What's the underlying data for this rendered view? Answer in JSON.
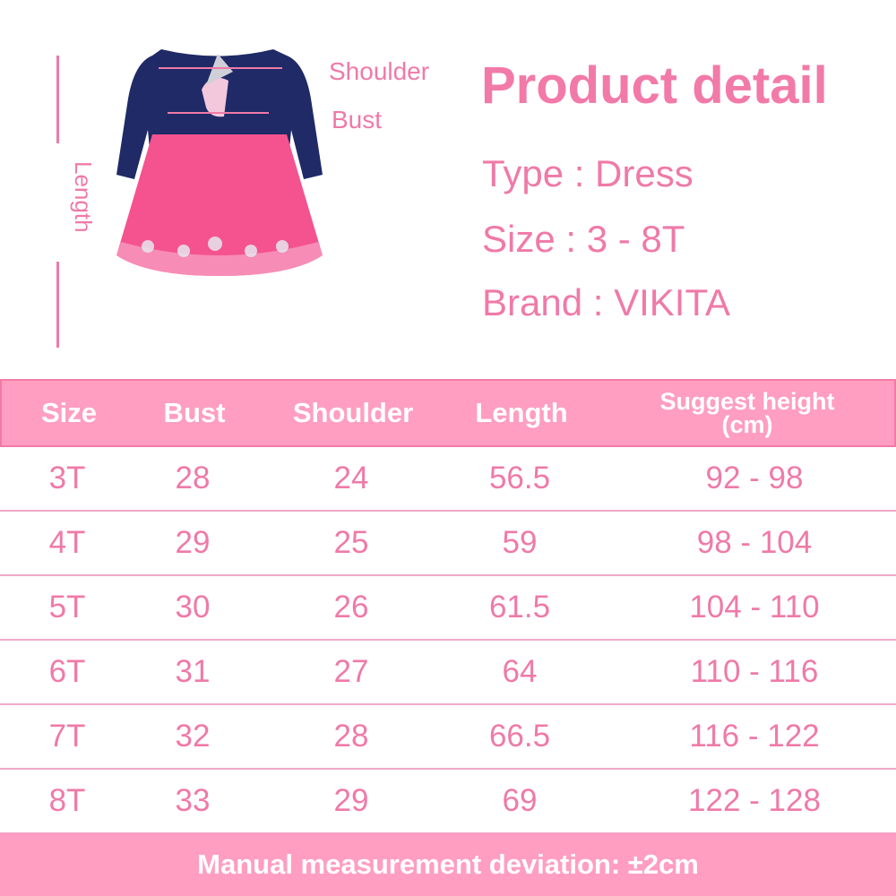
{
  "diagram": {
    "labels": {
      "shoulder": "Shoulder",
      "bust": "Bust",
      "length": "Length"
    },
    "colors": {
      "bodice": "#1f2a66",
      "skirt": "#f4538f",
      "accent": "#ef7aa8"
    }
  },
  "product": {
    "title": "Product detail",
    "type": "Type : Dress",
    "size": "Size : 3 - 8T",
    "brand": "Brand : VIKITA"
  },
  "table": {
    "headers": [
      "Size",
      "Bust",
      "Shoulder",
      "Length",
      "Suggest height",
      "(cm)"
    ],
    "rows": [
      [
        "3T",
        "28",
        "24",
        "56.5",
        "92 - 98"
      ],
      [
        "4T",
        "29",
        "25",
        "59",
        "98 - 104"
      ],
      [
        "5T",
        "30",
        "26",
        "61.5",
        "104 - 110"
      ],
      [
        "6T",
        "31",
        "27",
        "64",
        "110 - 116"
      ],
      [
        "7T",
        "32",
        "28",
        "66.5",
        "116 - 122"
      ],
      [
        "8T",
        "33",
        "29",
        "69",
        "122 - 128"
      ]
    ],
    "colors": {
      "header_bg": "#ff9ec0",
      "border": "#f27aa8",
      "text": "#ef7aa8"
    }
  },
  "footer": {
    "note": "Manual measurement deviation: ±2cm"
  }
}
